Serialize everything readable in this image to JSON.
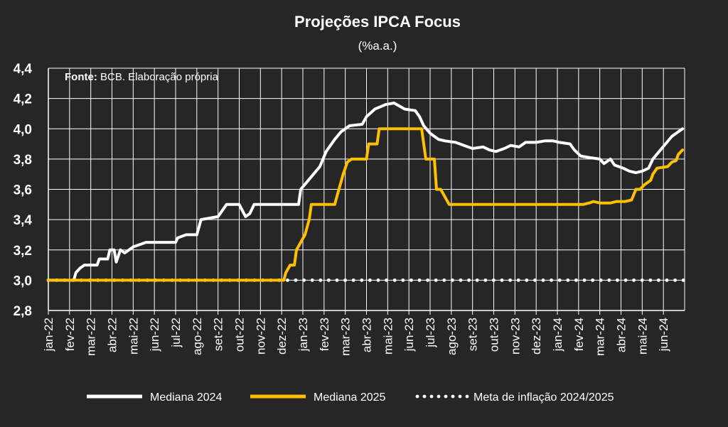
{
  "chart_data": {
    "type": "line",
    "title": "Projeções IPCA Focus",
    "subtitle": "(%a.a.)",
    "source_label": "Fonte:",
    "source_text": " BCB. Elaboração própria",
    "ylim": [
      2.8,
      4.4
    ],
    "y_ticks": [
      "2,8",
      "3,0",
      "3,2",
      "3,4",
      "3,6",
      "3,8",
      "4,0",
      "4,2",
      "4,4"
    ],
    "y_tick_values": [
      2.8,
      3.0,
      3.2,
      3.4,
      3.6,
      3.8,
      4.0,
      4.2,
      4.4
    ],
    "categories": [
      "jan-22",
      "fev-22",
      "mar-22",
      "abr-22",
      "mai-22",
      "jun-22",
      "jul-22",
      "ago-22",
      "set-22",
      "out-22",
      "nov-22",
      "dez-22",
      "jan-23",
      "fev-23",
      "mar-23",
      "abr-23",
      "mai-23",
      "jun-23",
      "jul-23",
      "ago-23",
      "set-23",
      "out-23",
      "nov-23",
      "dez-23",
      "jan-24",
      "fev-24",
      "mar-24",
      "abr-24",
      "mai-24",
      "jun-24"
    ],
    "x_range_months": [
      0,
      30
    ],
    "grid": true,
    "legend_position": "bottom",
    "series": [
      {
        "name": "Mediana 2024",
        "color": "#ffffff",
        "style": "solid",
        "points": [
          [
            0,
            3.0
          ],
          [
            1.2,
            3.0
          ],
          [
            1.3,
            3.05
          ],
          [
            1.5,
            3.08
          ],
          [
            1.7,
            3.1
          ],
          [
            2.3,
            3.1
          ],
          [
            2.4,
            3.14
          ],
          [
            2.8,
            3.14
          ],
          [
            2.9,
            3.2
          ],
          [
            3.1,
            3.2
          ],
          [
            3.2,
            3.12
          ],
          [
            3.4,
            3.2
          ],
          [
            3.6,
            3.18
          ],
          [
            3.8,
            3.2
          ],
          [
            4.0,
            3.22
          ],
          [
            4.4,
            3.24
          ],
          [
            4.6,
            3.25
          ],
          [
            6.0,
            3.25
          ],
          [
            6.1,
            3.28
          ],
          [
            6.5,
            3.3
          ],
          [
            7.0,
            3.3
          ],
          [
            7.2,
            3.4
          ],
          [
            8.0,
            3.42
          ],
          [
            8.4,
            3.5
          ],
          [
            9.0,
            3.5
          ],
          [
            9.3,
            3.42
          ],
          [
            9.5,
            3.44
          ],
          [
            9.7,
            3.5
          ],
          [
            11.8,
            3.5
          ],
          [
            11.9,
            3.6
          ],
          [
            12.2,
            3.65
          ],
          [
            12.5,
            3.7
          ],
          [
            12.8,
            3.75
          ],
          [
            13.1,
            3.85
          ],
          [
            13.5,
            3.93
          ],
          [
            13.8,
            3.98
          ],
          [
            14.2,
            4.02
          ],
          [
            14.8,
            4.03
          ],
          [
            15.0,
            4.08
          ],
          [
            15.4,
            4.13
          ],
          [
            15.9,
            4.16
          ],
          [
            16.3,
            4.17
          ],
          [
            16.8,
            4.13
          ],
          [
            17.3,
            4.12
          ],
          [
            17.5,
            4.08
          ],
          [
            17.7,
            4.02
          ],
          [
            18.0,
            3.97
          ],
          [
            18.4,
            3.93
          ],
          [
            18.7,
            3.92
          ],
          [
            19.2,
            3.91
          ],
          [
            19.6,
            3.89
          ],
          [
            20.0,
            3.87
          ],
          [
            20.5,
            3.88
          ],
          [
            20.8,
            3.86
          ],
          [
            21.1,
            3.85
          ],
          [
            21.5,
            3.87
          ],
          [
            21.8,
            3.89
          ],
          [
            22.2,
            3.88
          ],
          [
            22.5,
            3.91
          ],
          [
            23.0,
            3.91
          ],
          [
            23.4,
            3.92
          ],
          [
            23.8,
            3.92
          ],
          [
            24.1,
            3.91
          ],
          [
            24.6,
            3.9
          ],
          [
            24.8,
            3.86
          ],
          [
            25.1,
            3.82
          ],
          [
            25.5,
            3.81
          ],
          [
            26.0,
            3.8
          ],
          [
            26.2,
            3.77
          ],
          [
            26.5,
            3.8
          ],
          [
            26.7,
            3.76
          ],
          [
            27.1,
            3.74
          ],
          [
            27.4,
            3.72
          ],
          [
            27.7,
            3.71
          ],
          [
            28.0,
            3.72
          ],
          [
            28.3,
            3.74
          ],
          [
            28.5,
            3.8
          ],
          [
            28.8,
            3.85
          ],
          [
            29.1,
            3.9
          ],
          [
            29.4,
            3.95
          ],
          [
            29.7,
            3.98
          ],
          [
            29.9,
            4.0
          ]
        ]
      },
      {
        "name": "Mediana 2025",
        "color": "#FFC000",
        "style": "solid",
        "points": [
          [
            0,
            3.0
          ],
          [
            11.1,
            3.0
          ],
          [
            11.2,
            3.05
          ],
          [
            11.4,
            3.1
          ],
          [
            11.6,
            3.1
          ],
          [
            11.7,
            3.2
          ],
          [
            11.9,
            3.25
          ],
          [
            12.1,
            3.3
          ],
          [
            12.3,
            3.4
          ],
          [
            12.4,
            3.5
          ],
          [
            13.5,
            3.5
          ],
          [
            13.7,
            3.6
          ],
          [
            13.9,
            3.7
          ],
          [
            14.1,
            3.78
          ],
          [
            14.3,
            3.8
          ],
          [
            15.0,
            3.8
          ],
          [
            15.1,
            3.9
          ],
          [
            15.5,
            3.9
          ],
          [
            15.6,
            4.0
          ],
          [
            17.6,
            4.0
          ],
          [
            17.7,
            3.9
          ],
          [
            17.8,
            3.8
          ],
          [
            18.2,
            3.8
          ],
          [
            18.3,
            3.6
          ],
          [
            18.5,
            3.6
          ],
          [
            18.7,
            3.55
          ],
          [
            18.9,
            3.5
          ],
          [
            25.2,
            3.5
          ],
          [
            25.5,
            3.51
          ],
          [
            25.7,
            3.52
          ],
          [
            26.0,
            3.51
          ],
          [
            26.5,
            3.51
          ],
          [
            26.8,
            3.52
          ],
          [
            27.2,
            3.52
          ],
          [
            27.5,
            3.53
          ],
          [
            27.7,
            3.6
          ],
          [
            27.9,
            3.6
          ],
          [
            28.1,
            3.63
          ],
          [
            28.4,
            3.66
          ],
          [
            28.5,
            3.7
          ],
          [
            28.7,
            3.74
          ],
          [
            29.2,
            3.75
          ],
          [
            29.4,
            3.78
          ],
          [
            29.6,
            3.79
          ],
          [
            29.7,
            3.83
          ],
          [
            29.9,
            3.86
          ]
        ]
      },
      {
        "name": "Meta de inflação 2024/2025",
        "color": "#ffffff",
        "style": "dotted",
        "points": [
          [
            0,
            3.0
          ],
          [
            30,
            3.0
          ]
        ]
      }
    ]
  }
}
